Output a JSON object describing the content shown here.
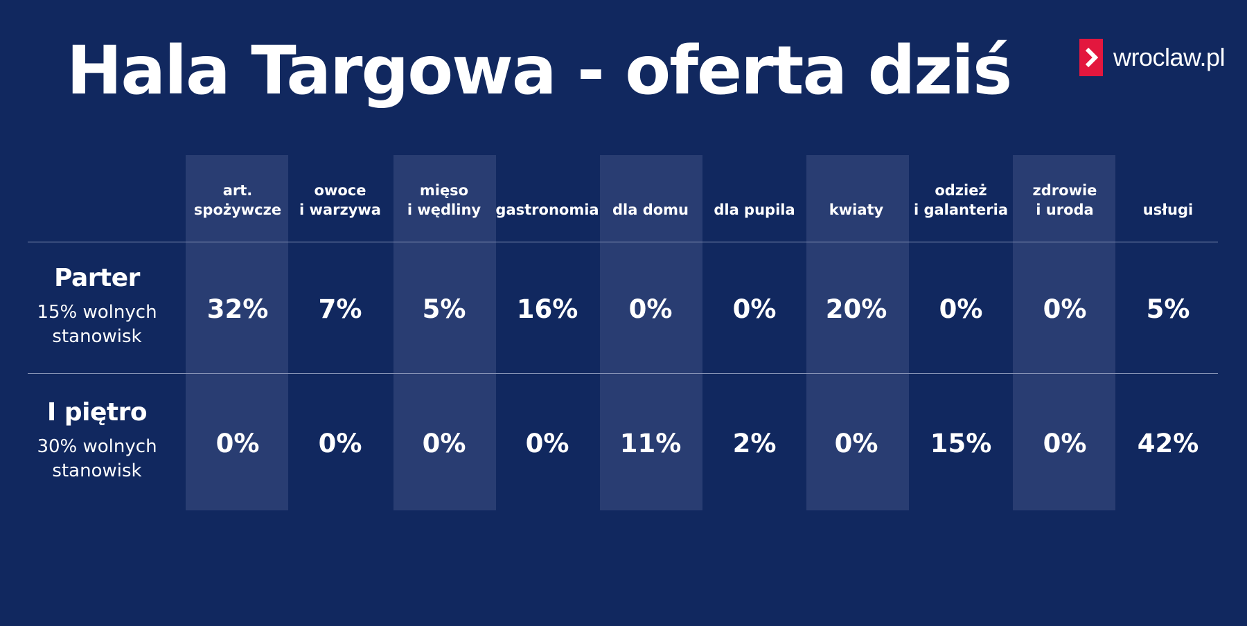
{
  "title": "Hala Targowa - oferta dziś",
  "logo": {
    "text": "wroclaw.pl",
    "icon": "chevron-right-icon",
    "color": "#e3173e"
  },
  "colors": {
    "background": "#11285f",
    "band": "#293d72",
    "text": "#ffffff"
  },
  "chart_data": {
    "type": "table",
    "categories": [
      "art.\nspożywcze",
      "owoce\ni warzywa",
      "mięso\ni wędliny",
      "gastronomia",
      "dla domu",
      "dla pupila",
      "kwiaty",
      "odzież\ni galanteria",
      "zdrowie\ni uroda",
      "usługi"
    ],
    "rows": [
      {
        "name": "Parter",
        "subtitle": "15% wolnych\nstanowisk",
        "cells": [
          "32%",
          "7%",
          "5%",
          "16%",
          "0%",
          "0%",
          "20%",
          "0%",
          "0%",
          "5%"
        ]
      },
      {
        "name": "I piętro",
        "subtitle": "30% wolnych\nstanowisk",
        "cells": [
          "0%",
          "0%",
          "0%",
          "0%",
          "11%",
          "2%",
          "0%",
          "15%",
          "0%",
          "42%"
        ]
      }
    ]
  }
}
